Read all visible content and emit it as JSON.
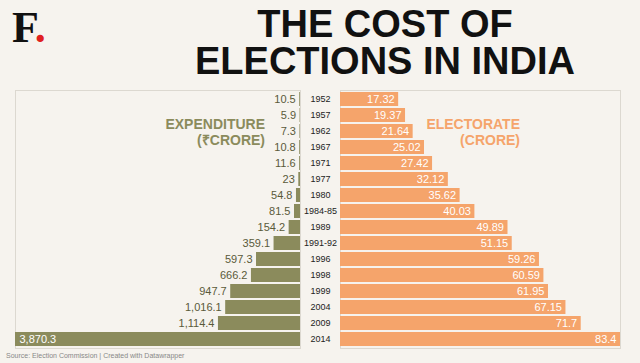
{
  "logo": "F.",
  "source": "Source: Election Commission | Created with Datawrapper",
  "chart_data": [
    {
      "type": "bar",
      "orientation": "horizontal",
      "title": "THE COST OF ELECTIONS IN INDIA",
      "categories": [
        "1952",
        "1957",
        "1962",
        "1967",
        "1971",
        "1977",
        "1980",
        "1984-85",
        "1989",
        "1991-92",
        "1996",
        "1998",
        "1999",
        "2004",
        "2009",
        "2014"
      ],
      "series": [
        {
          "name": "EXPENDITURE (₹CRORE)",
          "color": "#8b8b5c",
          "values": [
            10.5,
            5.9,
            7.3,
            10.8,
            11.6,
            23,
            54.8,
            81.5,
            154.2,
            359.1,
            597.3,
            666.2,
            947.7,
            1016.1,
            1114.4,
            3870.3
          ],
          "value_labels": [
            "10.5",
            "5.9",
            "7.3",
            "10.8",
            "11.6",
            "23",
            "54.8",
            "81.5",
            "154.2",
            "359.1",
            "597.3",
            "666.2",
            "947.7",
            "1,016.1",
            "1,114.4",
            "3,870.3"
          ]
        }
      ],
      "xlim": [
        0,
        3870.3
      ],
      "data_labels": true,
      "tick_labels": "y"
    },
    {
      "type": "bar",
      "orientation": "horizontal",
      "categories": [
        "1952",
        "1957",
        "1962",
        "1967",
        "1971",
        "1977",
        "1980",
        "1984-85",
        "1989",
        "1991-92",
        "1996",
        "1998",
        "1999",
        "2004",
        "2009",
        "2014"
      ],
      "series": [
        {
          "name": "ELECTORATE (CRORE)",
          "color": "#f5a46b",
          "values": [
            17.32,
            19.37,
            21.64,
            25.02,
            27.42,
            32.12,
            35.62,
            40.03,
            49.89,
            51.15,
            59.26,
            60.59,
            61.95,
            67.15,
            71.7,
            83.4
          ]
        }
      ],
      "xlim": [
        0,
        83.4
      ],
      "data_labels": true,
      "tick_labels": false
    }
  ]
}
